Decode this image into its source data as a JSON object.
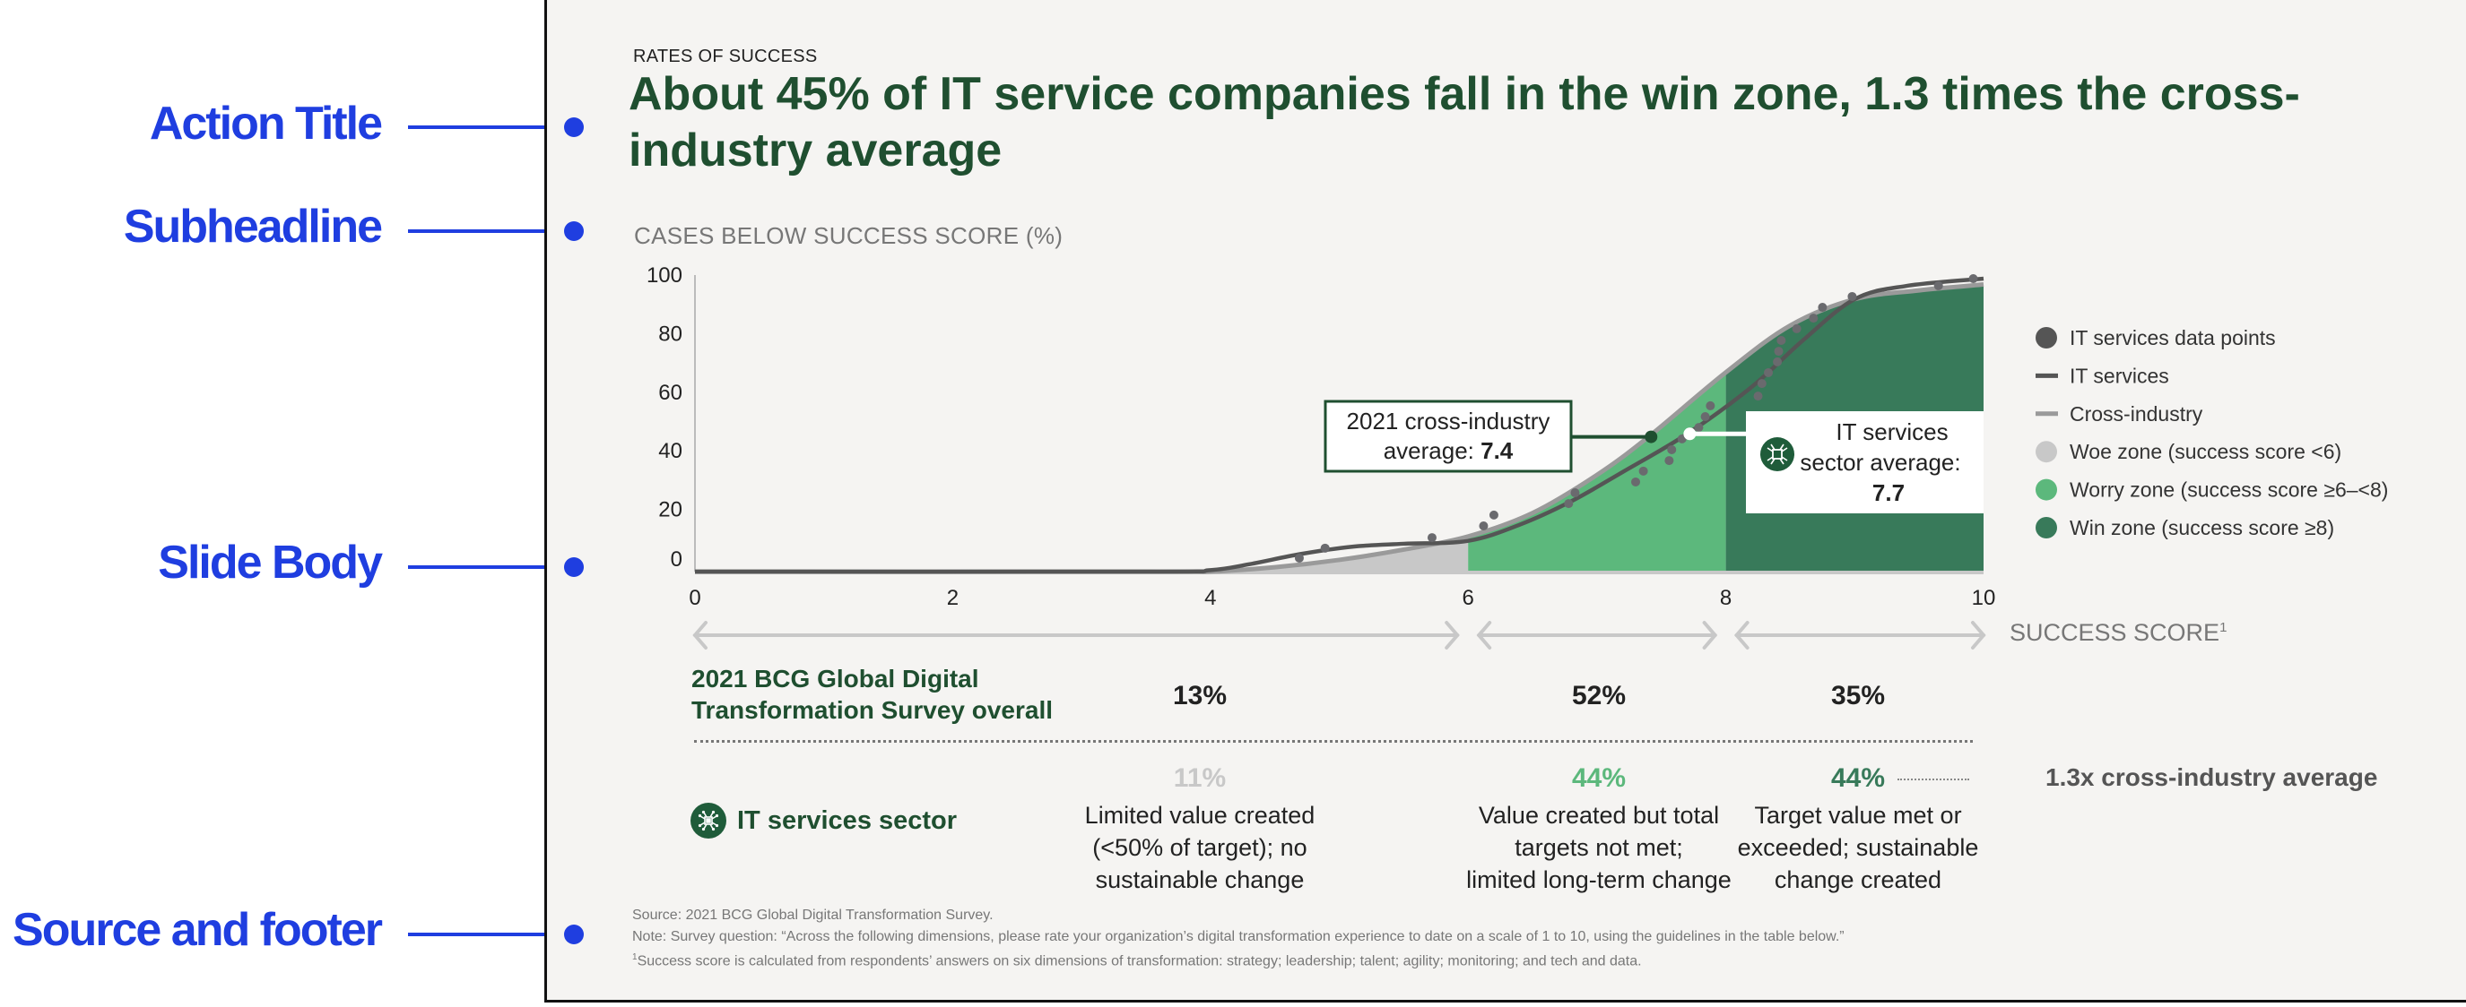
{
  "annotations": [
    {
      "label": "Action Title"
    },
    {
      "label": "Subheadline"
    },
    {
      "label": "Slide Body"
    },
    {
      "label": "Source and footer"
    }
  ],
  "slide": {
    "kicker": "RATES OF SUCCESS",
    "title": "About 45% of IT service companies fall in the win zone, 1.3 times the cross-industry average",
    "subheadline": "CASES BELOW SUCCESS SCORE (%)"
  },
  "colors": {
    "title_green": "#1f4f30",
    "woe": "#c8c8c8",
    "worry": "#5cb87c",
    "win": "#387a5a",
    "it_line": "#555555",
    "cross_line": "#9a9a9a",
    "annotation_blue": "#1f3ee0"
  },
  "chart_data": {
    "type": "line",
    "title": "CASES BELOW SUCCESS SCORE (%)",
    "xlabel": "SUCCESS SCORE¹",
    "ylabel": "Cases below success score (%)",
    "xlim": [
      0,
      10
    ],
    "ylim": [
      0,
      100
    ],
    "x_ticks": [
      "0",
      "2",
      "4",
      "6",
      "8",
      "10"
    ],
    "y_ticks": [
      "100",
      "80",
      "60",
      "40",
      "20",
      "0"
    ],
    "grid": false,
    "legend_position": "right",
    "legend": [
      {
        "label": "IT services data points",
        "marker": "dot",
        "color": "#555555"
      },
      {
        "label": "IT services",
        "marker": "line",
        "color": "#555555"
      },
      {
        "label": "Cross-industry",
        "marker": "line",
        "color": "#9a9a9a"
      },
      {
        "label": "Woe zone (success score <6)",
        "marker": "dot",
        "color": "#c8c8c8"
      },
      {
        "label": "Worry zone (success score ≥6–<8)",
        "marker": "dot",
        "color": "#5cb87c"
      },
      {
        "label": "Win zone (success score ≥8)",
        "marker": "dot",
        "color": "#387a5a"
      }
    ],
    "zones": [
      {
        "name": "Woe zone",
        "from": 0,
        "to": 6,
        "color": "#c8c8c8"
      },
      {
        "name": "Worry zone",
        "from": 6,
        "to": 8,
        "color": "#5cb87c"
      },
      {
        "name": "Win zone",
        "from": 8,
        "to": 10,
        "color": "#387a5a"
      }
    ],
    "series": [
      {
        "name": "IT services",
        "x": [
          0,
          3.5,
          4.0,
          4.3,
          4.7,
          5.1,
          5.5,
          6.0,
          6.4,
          6.8,
          7.2,
          7.7,
          8.2,
          8.6,
          9.0,
          9.4,
          10.0
        ],
        "y": [
          0,
          0,
          0.5,
          2.5,
          6,
          8.5,
          9.5,
          10.5,
          16,
          24,
          34,
          47,
          63,
          79,
          93,
          97.5,
          100
        ]
      },
      {
        "name": "Cross-industry",
        "x": [
          0,
          3.5,
          4.0,
          4.5,
          5.0,
          5.5,
          6.0,
          6.5,
          7.0,
          7.4,
          8.0,
          8.5,
          9.0,
          9.5,
          10.0
        ],
        "y": [
          0,
          0,
          0,
          1.5,
          4,
          7.5,
          12,
          20,
          33,
          46,
          68,
          84,
          93,
          96,
          98
        ]
      },
      {
        "name": "IT services data points",
        "type": "scatter",
        "points": [
          [
            4.69,
            4.6
          ],
          [
            4.89,
            8.0
          ],
          [
            5.72,
            11.6
          ],
          [
            6.12,
            15.6
          ],
          [
            6.2,
            19.3
          ],
          [
            6.78,
            23.2
          ],
          [
            6.83,
            26.9
          ],
          [
            7.3,
            30.6
          ],
          [
            7.36,
            34.3
          ],
          [
            7.56,
            37.9
          ],
          [
            7.58,
            41.6
          ],
          [
            7.66,
            45.3
          ],
          [
            7.79,
            49.2
          ],
          [
            7.84,
            52.9
          ],
          [
            7.88,
            56.6
          ],
          [
            8.25,
            59.9
          ],
          [
            8.28,
            64.2
          ],
          [
            8.33,
            67.9
          ],
          [
            8.4,
            71.6
          ],
          [
            8.41,
            75.2
          ],
          [
            8.43,
            78.9
          ],
          [
            8.55,
            82.9
          ],
          [
            8.68,
            86.5
          ],
          [
            8.75,
            90.2
          ],
          [
            8.98,
            93.9
          ],
          [
            9.65,
            97.6
          ],
          [
            9.92,
            100
          ]
        ]
      }
    ],
    "annotations": [
      {
        "text_line1": "2021 cross-industry",
        "text_line2_prefix": "average: ",
        "value": "7.4",
        "x": 7.42,
        "y": 46,
        "series": "Cross-industry"
      },
      {
        "text_line1": "IT services",
        "text_line2": "sector average:",
        "value": "7.7",
        "x": 7.72,
        "y": 47,
        "series": "IT services"
      }
    ]
  },
  "range_arrows": {
    "axis_label": "SUCCESS SCORE",
    "axis_label_sup": "1"
  },
  "survey_table": {
    "overall_label": "2021 BCG Global Digital Transformation Survey overall",
    "overall_values": [
      "13%",
      "52%",
      "35%"
    ],
    "it_label": "IT services sector",
    "it_values": [
      "11%",
      "44%",
      "44%"
    ],
    "it_value_colors": [
      "#c8c8c8",
      "#5cb87c",
      "#387a5a"
    ],
    "descriptions": [
      [
        "Limited value created",
        "(<50% of target); no",
        "sustainable change"
      ],
      [
        "Value created but total",
        "targets not met;",
        "limited long-term change"
      ],
      [
        "Target value met or",
        "exceeded; sustainable",
        "change created"
      ]
    ],
    "cross_industry_note": "1.3x cross-industry average"
  },
  "footer": {
    "source": "Source: 2021 BCG Global Digital Transformation Survey.",
    "note": "Note: Survey question: “Across the following dimensions, please rate your organization’s digital transformation experience to date on a scale of 1 to 10, using the guidelines in the table below.”",
    "footnote_mark": "1",
    "footnote": "Success score is calculated from respondents’ answers on six dimensions of transformation: strategy; leadership; talent; agility; monitoring; and tech and data."
  }
}
